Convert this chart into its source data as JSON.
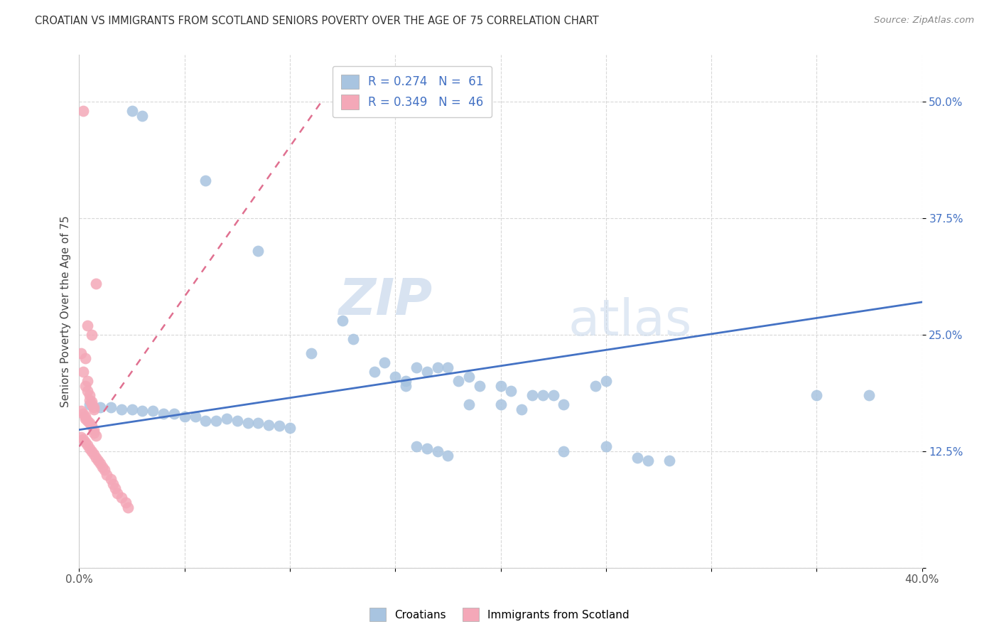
{
  "title": "CROATIAN VS IMMIGRANTS FROM SCOTLAND SENIORS POVERTY OVER THE AGE OF 75 CORRELATION CHART",
  "source": "Source: ZipAtlas.com",
  "ylabel": "Seniors Poverty Over the Age of 75",
  "xlim": [
    0.0,
    0.4
  ],
  "ylim": [
    0.0,
    0.55
  ],
  "xticks": [
    0.0,
    0.05,
    0.1,
    0.15,
    0.2,
    0.25,
    0.3,
    0.35,
    0.4
  ],
  "xticklabels": [
    "0.0%",
    "",
    "",
    "",
    "",
    "",
    "",
    "",
    "40.0%"
  ],
  "ytick_positions": [
    0.0,
    0.125,
    0.25,
    0.375,
    0.5
  ],
  "yticklabels": [
    "",
    "12.5%",
    "25.0%",
    "37.5%",
    "50.0%"
  ],
  "blue_color": "#a8c4e0",
  "pink_color": "#f4a8b8",
  "blue_line_color": "#4472c4",
  "pink_line_color": "#e07090",
  "blue_line": [
    [
      0.0,
      0.148
    ],
    [
      0.4,
      0.285
    ]
  ],
  "pink_line": [
    [
      0.0,
      0.13
    ],
    [
      0.115,
      0.5
    ]
  ],
  "blue_scatter": [
    [
      0.025,
      0.49
    ],
    [
      0.03,
      0.485
    ],
    [
      0.06,
      0.415
    ],
    [
      0.085,
      0.34
    ],
    [
      0.11,
      0.23
    ],
    [
      0.125,
      0.265
    ],
    [
      0.13,
      0.245
    ],
    [
      0.14,
      0.21
    ],
    [
      0.145,
      0.22
    ],
    [
      0.15,
      0.205
    ],
    [
      0.155,
      0.2
    ],
    [
      0.155,
      0.195
    ],
    [
      0.16,
      0.215
    ],
    [
      0.165,
      0.21
    ],
    [
      0.17,
      0.215
    ],
    [
      0.175,
      0.215
    ],
    [
      0.18,
      0.2
    ],
    [
      0.185,
      0.205
    ],
    [
      0.19,
      0.195
    ],
    [
      0.2,
      0.195
    ],
    [
      0.205,
      0.19
    ],
    [
      0.185,
      0.175
    ],
    [
      0.2,
      0.175
    ],
    [
      0.215,
      0.185
    ],
    [
      0.22,
      0.185
    ],
    [
      0.225,
      0.185
    ],
    [
      0.21,
      0.17
    ],
    [
      0.23,
      0.175
    ],
    [
      0.245,
      0.195
    ],
    [
      0.25,
      0.2
    ],
    [
      0.005,
      0.175
    ],
    [
      0.01,
      0.172
    ],
    [
      0.015,
      0.172
    ],
    [
      0.02,
      0.17
    ],
    [
      0.025,
      0.17
    ],
    [
      0.03,
      0.168
    ],
    [
      0.035,
      0.168
    ],
    [
      0.04,
      0.165
    ],
    [
      0.045,
      0.165
    ],
    [
      0.05,
      0.162
    ],
    [
      0.055,
      0.162
    ],
    [
      0.06,
      0.158
    ],
    [
      0.065,
      0.158
    ],
    [
      0.07,
      0.16
    ],
    [
      0.075,
      0.158
    ],
    [
      0.08,
      0.155
    ],
    [
      0.085,
      0.155
    ],
    [
      0.09,
      0.153
    ],
    [
      0.095,
      0.152
    ],
    [
      0.1,
      0.15
    ],
    [
      0.16,
      0.13
    ],
    [
      0.165,
      0.128
    ],
    [
      0.17,
      0.125
    ],
    [
      0.175,
      0.12
    ],
    [
      0.23,
      0.125
    ],
    [
      0.25,
      0.13
    ],
    [
      0.265,
      0.118
    ],
    [
      0.27,
      0.115
    ],
    [
      0.28,
      0.115
    ],
    [
      0.35,
      0.185
    ],
    [
      0.375,
      0.185
    ]
  ],
  "pink_scatter": [
    [
      0.002,
      0.49
    ],
    [
      0.008,
      0.305
    ],
    [
      0.004,
      0.26
    ],
    [
      0.006,
      0.25
    ],
    [
      0.001,
      0.23
    ],
    [
      0.003,
      0.225
    ],
    [
      0.002,
      0.21
    ],
    [
      0.004,
      0.2
    ],
    [
      0.003,
      0.195
    ],
    [
      0.004,
      0.19
    ],
    [
      0.005,
      0.185
    ],
    [
      0.005,
      0.18
    ],
    [
      0.006,
      0.178
    ],
    [
      0.006,
      0.175
    ],
    [
      0.007,
      0.172
    ],
    [
      0.007,
      0.17
    ],
    [
      0.001,
      0.168
    ],
    [
      0.002,
      0.165
    ],
    [
      0.003,
      0.162
    ],
    [
      0.003,
      0.16
    ],
    [
      0.004,
      0.158
    ],
    [
      0.005,
      0.155
    ],
    [
      0.006,
      0.152
    ],
    [
      0.007,
      0.148
    ],
    [
      0.007,
      0.145
    ],
    [
      0.008,
      0.142
    ],
    [
      0.001,
      0.14
    ],
    [
      0.002,
      0.138
    ],
    [
      0.003,
      0.135
    ],
    [
      0.004,
      0.132
    ],
    [
      0.005,
      0.128
    ],
    [
      0.006,
      0.125
    ],
    [
      0.007,
      0.122
    ],
    [
      0.008,
      0.118
    ],
    [
      0.009,
      0.115
    ],
    [
      0.01,
      0.112
    ],
    [
      0.011,
      0.108
    ],
    [
      0.012,
      0.105
    ],
    [
      0.013,
      0.1
    ],
    [
      0.015,
      0.095
    ],
    [
      0.016,
      0.09
    ],
    [
      0.017,
      0.085
    ],
    [
      0.018,
      0.08
    ],
    [
      0.02,
      0.075
    ],
    [
      0.022,
      0.07
    ],
    [
      0.023,
      0.065
    ]
  ],
  "watermark_zip": "ZIP",
  "watermark_atlas": "atlas",
  "background_color": "#ffffff",
  "grid_color": "#d8d8d8"
}
